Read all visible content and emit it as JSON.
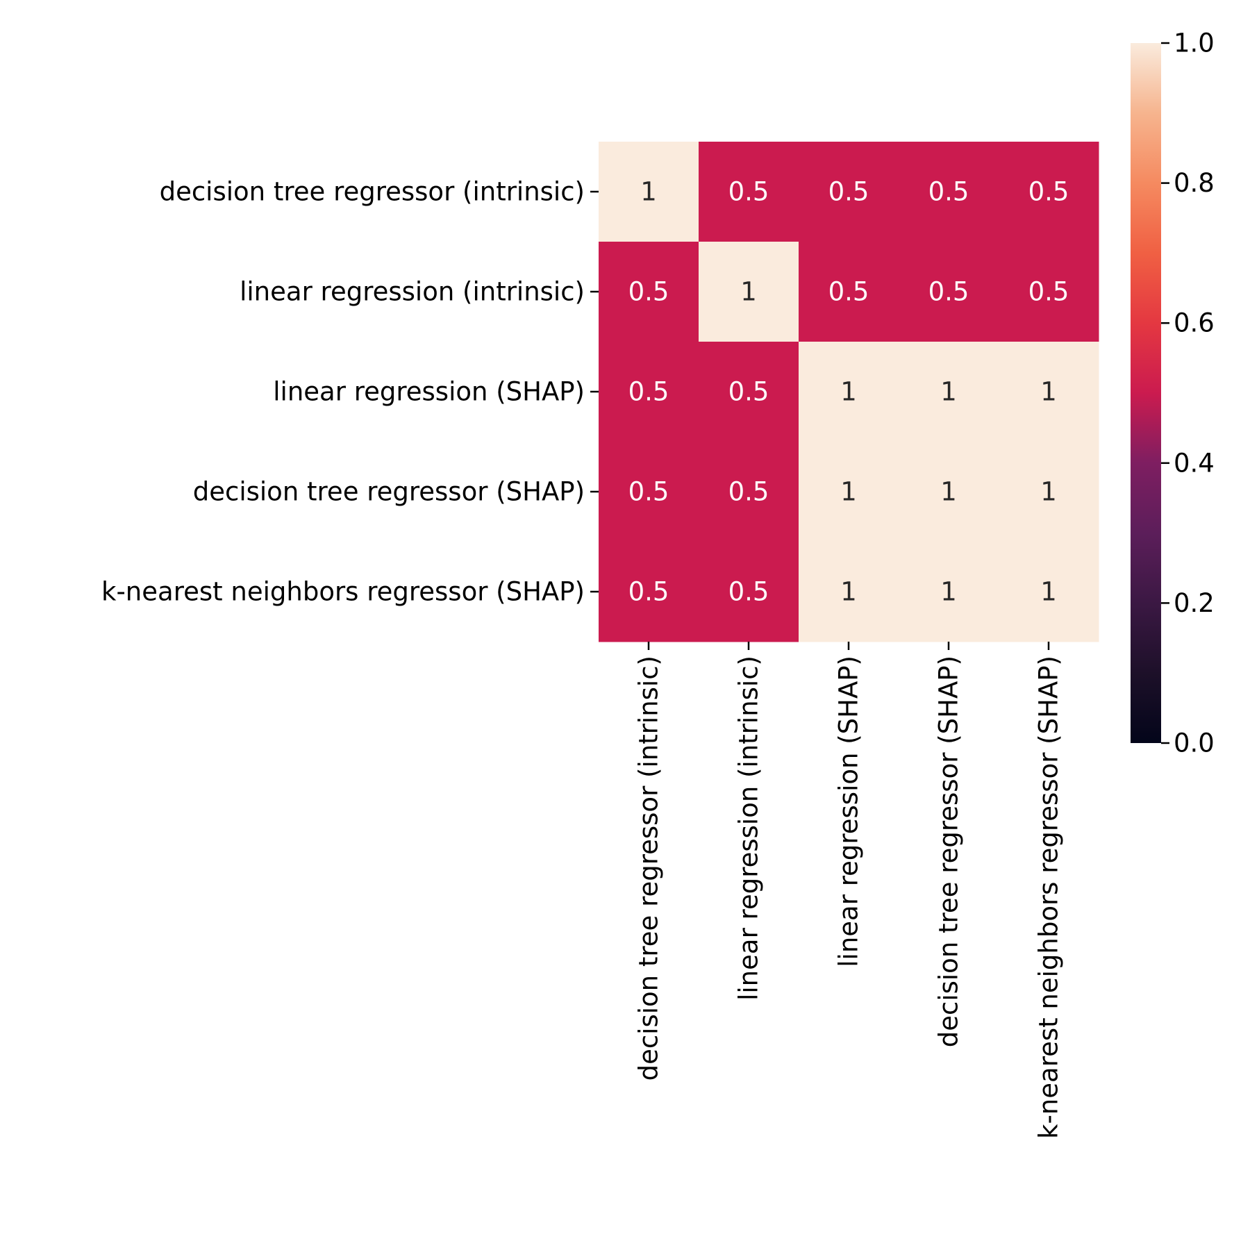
{
  "chart_data": {
    "type": "heatmap",
    "row_labels": [
      "decision tree regressor (intrinsic)",
      "linear regression (intrinsic)",
      "linear regression (SHAP)",
      "decision tree regressor (SHAP)",
      "k-nearest neighbors regressor (SHAP)"
    ],
    "col_labels": [
      "decision tree regressor (intrinsic)",
      "linear regression (intrinsic)",
      "linear regression (SHAP)",
      "decision tree regressor (SHAP)",
      "k-nearest neighbors regressor (SHAP)"
    ],
    "values": [
      [
        1,
        0.5,
        0.5,
        0.5,
        0.5
      ],
      [
        0.5,
        1,
        0.5,
        0.5,
        0.5
      ],
      [
        0.5,
        0.5,
        1,
        1,
        1
      ],
      [
        0.5,
        0.5,
        1,
        1,
        1
      ],
      [
        0.5,
        0.5,
        1,
        1,
        1
      ]
    ],
    "annotations": [
      [
        "1",
        "0.5",
        "0.5",
        "0.5",
        "0.5"
      ],
      [
        "0.5",
        "1",
        "0.5",
        "0.5",
        "0.5"
      ],
      [
        "0.5",
        "0.5",
        "1",
        "1",
        "1"
      ],
      [
        "0.5",
        "0.5",
        "1",
        "1",
        "1"
      ],
      [
        "0.5",
        "0.5",
        "1",
        "1",
        "1"
      ]
    ],
    "vmin": 0,
    "vmax": 1,
    "colormap": "rocket",
    "colorbar": {
      "ticks": [
        0.0,
        0.2,
        0.4,
        0.6,
        0.8,
        1.0
      ],
      "tick_labels": [
        "0.0",
        "0.2",
        "0.4",
        "0.6",
        "0.8",
        "1.0"
      ]
    },
    "colors": {
      "high": "#faebdd",
      "mid": "#cb1b4f",
      "text_on_light": "#262626",
      "text_on_dark": "#ffffff"
    }
  }
}
